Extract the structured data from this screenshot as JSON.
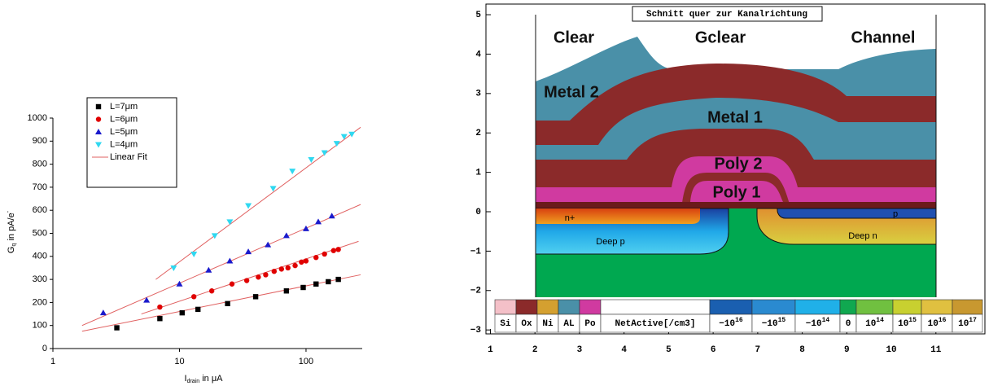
{
  "chart_data": [
    {
      "type": "scatter",
      "log_x": true,
      "legend": "upper left",
      "xlabel": {
        "main": "I",
        "sub": "drain",
        "rest": " in μA"
      },
      "ylabel": {
        "main": "G",
        "sub": "q",
        "rest": " in pA/e",
        "sup": "-"
      },
      "xlim": [
        1,
        278
      ],
      "xticks": [
        1,
        10,
        100
      ],
      "ylim": [
        0,
        1000
      ],
      "yticks": [
        0,
        100,
        200,
        300,
        400,
        500,
        600,
        700,
        800,
        900,
        1000
      ],
      "series": [
        {
          "name": "L=7μm",
          "color": "#000000",
          "marker": "square",
          "x": [
            3.2,
            7,
            10.5,
            14,
            24,
            40,
            70,
            95,
            120,
            150,
            180
          ],
          "values": [
            90,
            130,
            155,
            170,
            195,
            225,
            250,
            265,
            280,
            290,
            300
          ]
        },
        {
          "name": "L=6μm",
          "color": "#e00000",
          "marker": "circle",
          "x": [
            7,
            13,
            18,
            26,
            34,
            42,
            48,
            56,
            64,
            72,
            82,
            92,
            100,
            120,
            140,
            165,
            180
          ],
          "values": [
            180,
            225,
            250,
            280,
            295,
            310,
            320,
            335,
            345,
            350,
            360,
            375,
            380,
            395,
            410,
            425,
            430
          ]
        },
        {
          "name": "L=5μm",
          "color": "#1a1acc",
          "marker": "triangle-up",
          "x": [
            2.5,
            5.5,
            10,
            17,
            25,
            35,
            50,
            70,
            100,
            125,
            160
          ],
          "values": [
            155,
            210,
            280,
            340,
            380,
            420,
            450,
            490,
            520,
            550,
            575
          ]
        },
        {
          "name": "L=4μm",
          "color": "#30d8f0",
          "marker": "triangle-down",
          "x": [
            9,
            13,
            19,
            25,
            35,
            55,
            78,
            110,
            140,
            175,
            200,
            230
          ],
          "values": [
            350,
            410,
            490,
            550,
            620,
            695,
            770,
            820,
            850,
            890,
            920,
            930
          ]
        }
      ],
      "fits": {
        "name": "Linear Fit",
        "color": "#e06060",
        "lines": [
          {
            "x": [
              1.7,
              270
            ],
            "values": [
              75,
              320
            ]
          },
          {
            "x": [
              5,
              260
            ],
            "values": [
              150,
              465
            ]
          },
          {
            "x": [
              1.7,
              270
            ],
            "values": [
              100,
              625
            ]
          },
          {
            "x": [
              6.5,
              270
            ],
            "values": [
              300,
              960
            ]
          }
        ]
      }
    },
    {
      "type": "cross-section",
      "title": "Schnitt quer zur Kanalrichtung",
      "xlim": [
        0.9,
        12.1
      ],
      "xticks": [
        1,
        2,
        3,
        4,
        5,
        6,
        7,
        8,
        9,
        10,
        11
      ],
      "ylim": [
        -3.1,
        5.27
      ],
      "yticks": [
        {
          "value": -3,
          "label": "−3"
        },
        {
          "value": -2,
          "label": "−2"
        },
        {
          "value": -1,
          "label": "−1"
        },
        0,
        1,
        2,
        3,
        4,
        5
      ],
      "region_labels": [
        "Clear",
        "Gclear",
        "Channel",
        "Metal 2",
        "Metal 1",
        "Poly 2",
        "Poly 1",
        "n+",
        "p",
        "Deep p",
        "Deep n"
      ],
      "materials": [
        {
          "label": "Si",
          "color": "#f4c0c8"
        },
        {
          "label": "Ox",
          "color": "#8b2a2a"
        },
        {
          "label": "Ni",
          "color": "#d4a030"
        },
        {
          "label": "AL",
          "color": "#4a90a8"
        },
        {
          "label": "Po",
          "color": "#d03aa0"
        }
      ],
      "scale_label": "NetActive[/cm3]",
      "scale": [
        {
          "base": "−10",
          "exp": "16",
          "color": "#1a5fb0"
        },
        {
          "base": "−10",
          "exp": "15",
          "color": "#2a8ad0"
        },
        {
          "base": "−10",
          "exp": "14",
          "color": "#20b0e8"
        },
        {
          "base": "0",
          "color": "#10a850"
        },
        {
          "base": "10",
          "exp": "14",
          "color": "#70c040"
        },
        {
          "base": "10",
          "exp": "15",
          "color": "#c8d030"
        },
        {
          "base": "10",
          "exp": "16",
          "color": "#e0c040"
        },
        {
          "base": "10",
          "exp": "17",
          "color": "#c89830"
        }
      ]
    }
  ]
}
